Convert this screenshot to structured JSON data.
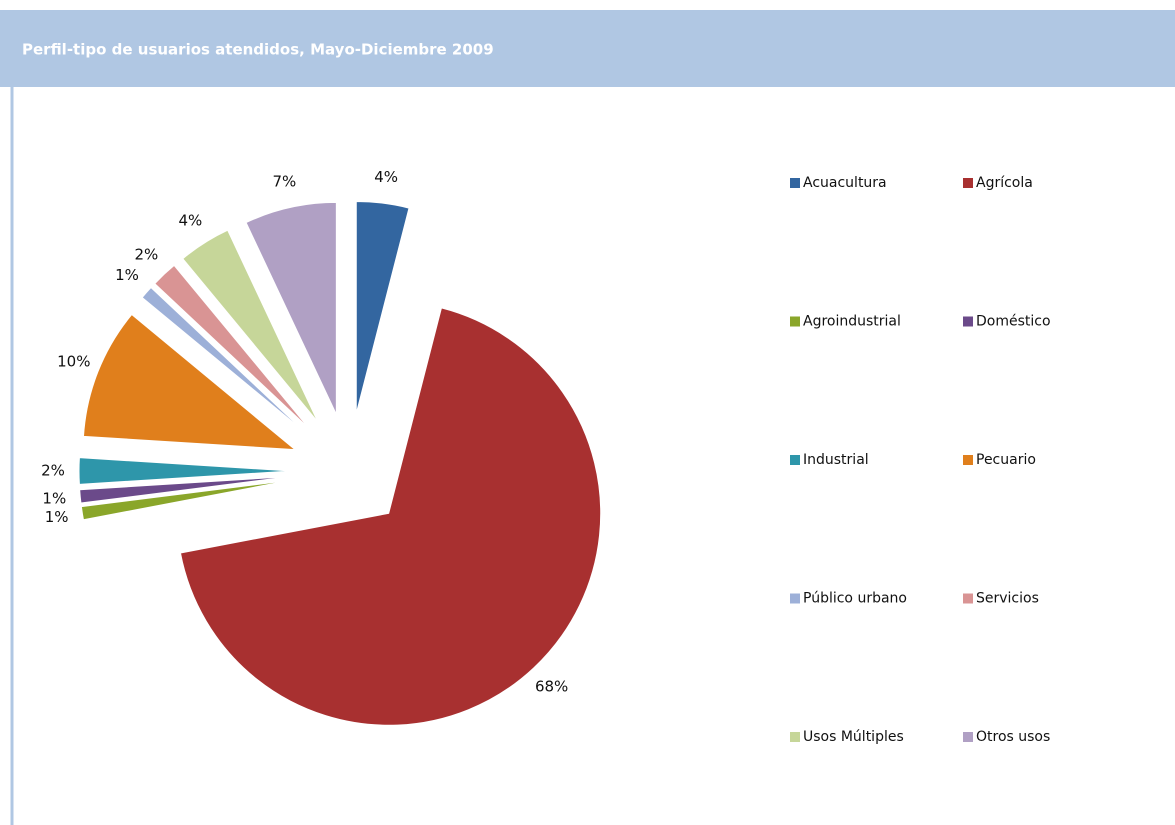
{
  "chart_data": {
    "type": "pie",
    "title": "Perfil-tipo de usuarios atendidos, Mayo-Diciembre 2009",
    "categories": [
      "Acuacultura",
      "Agrícola",
      "Agroindustrial",
      "Doméstico",
      "Industrial",
      "Pecuario",
      "Público urbano",
      "Servicios",
      "Usos Múltiples",
      "Otros usos"
    ],
    "values": [
      4,
      68,
      1,
      1,
      2,
      10,
      1,
      2,
      4,
      7
    ],
    "value_labels": [
      "4%",
      "68%",
      "1%",
      "1%",
      "2%",
      "10%",
      "1%",
      "2%",
      "4%",
      "7%"
    ],
    "colors": [
      "#3366a0",
      "#a83030",
      "#8aa62a",
      "#6b4a8a",
      "#2e96aa",
      "#e07f1c",
      "#9db0d8",
      "#d99494",
      "#c6d699",
      "#b0a0c4"
    ],
    "legend": "right"
  }
}
